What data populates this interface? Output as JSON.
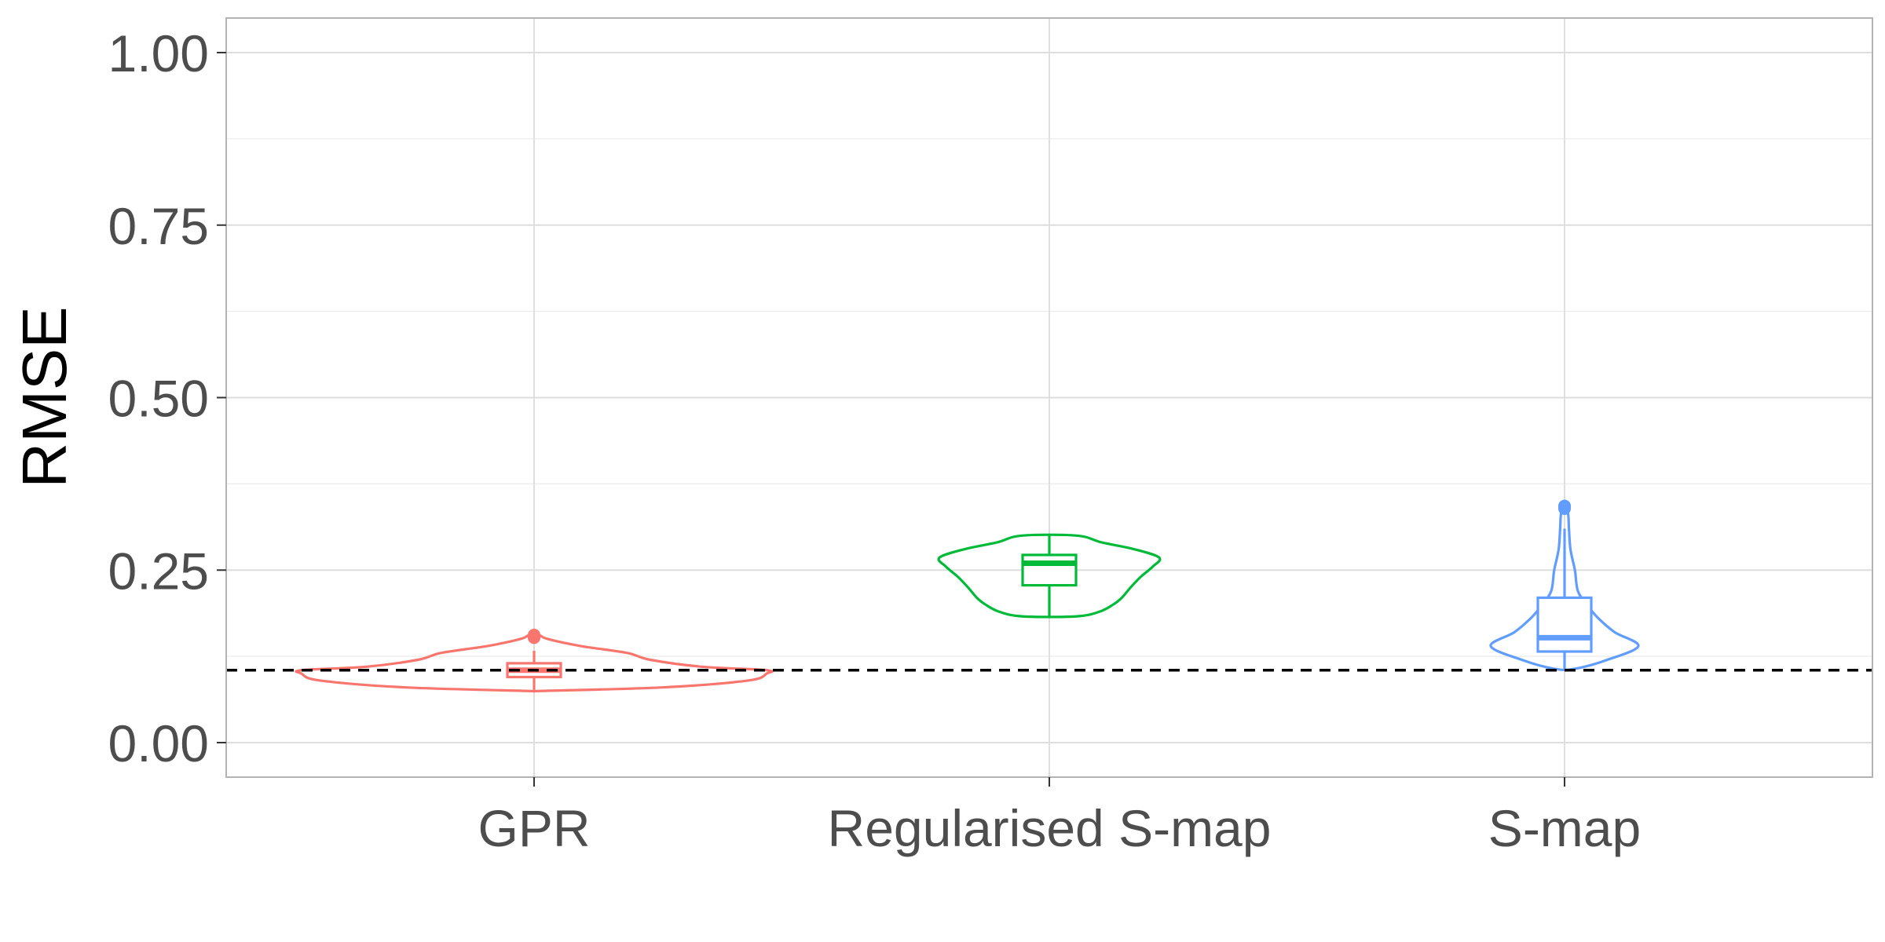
{
  "chart_data": {
    "type": "violin",
    "title": "",
    "xlabel": "",
    "ylabel": "RMSE",
    "ylim": [
      -0.05,
      1.05
    ],
    "yticks": [
      0.0,
      0.25,
      0.5,
      0.75,
      1.0
    ],
    "ytick_labels": [
      "0.00",
      "0.25",
      "0.50",
      "0.75",
      "1.00"
    ],
    "categories": [
      "GPR",
      "Regularised S-map",
      "S-map"
    ],
    "grid": true,
    "legend": "none",
    "reference_line": {
      "y": 0.105,
      "style": "dashed",
      "color": "#000000"
    },
    "series": [
      {
        "category": "GPR",
        "color": "#F8766D",
        "box": {
          "min": 0.075,
          "q1": 0.095,
          "median": 0.105,
          "q3": 0.115,
          "max": 0.133
        },
        "outliers": [
          0.152,
          0.154,
          0.156
        ],
        "violin_profile": [
          [
            0.075,
            0.04
          ],
          [
            0.08,
            0.55
          ],
          [
            0.09,
            0.92
          ],
          [
            0.1,
            1.0
          ],
          [
            0.105,
            1.0
          ],
          [
            0.11,
            0.72
          ],
          [
            0.12,
            0.5
          ],
          [
            0.13,
            0.4
          ],
          [
            0.14,
            0.2
          ],
          [
            0.15,
            0.06
          ],
          [
            0.156,
            0.02
          ]
        ]
      },
      {
        "category": "Regularised S-map",
        "color": "#00BA38",
        "box": {
          "min": 0.183,
          "q1": 0.228,
          "median": 0.26,
          "q3": 0.272,
          "max": 0.3
        },
        "outliers": [],
        "violin_profile": [
          [
            0.183,
            0.25
          ],
          [
            0.19,
            0.46
          ],
          [
            0.2,
            0.58
          ],
          [
            0.21,
            0.66
          ],
          [
            0.225,
            0.74
          ],
          [
            0.24,
            0.83
          ],
          [
            0.255,
            0.94
          ],
          [
            0.268,
            1.0
          ],
          [
            0.28,
            0.78
          ],
          [
            0.29,
            0.48
          ],
          [
            0.3,
            0.25
          ]
        ]
      },
      {
        "category": "S-map",
        "color": "#619CFF",
        "box": {
          "min": 0.107,
          "q1": 0.132,
          "median": 0.152,
          "q3": 0.21,
          "max": 0.31
        },
        "outliers": [
          0.339,
          0.341,
          0.343
        ],
        "violin_profile": [
          [
            0.107,
            0.14
          ],
          [
            0.12,
            0.58
          ],
          [
            0.14,
            1.0
          ],
          [
            0.16,
            0.68
          ],
          [
            0.18,
            0.46
          ],
          [
            0.2,
            0.3
          ],
          [
            0.22,
            0.18
          ],
          [
            0.25,
            0.14
          ],
          [
            0.28,
            0.08
          ],
          [
            0.31,
            0.06
          ],
          [
            0.33,
            0.05
          ],
          [
            0.343,
            0.02
          ]
        ]
      }
    ]
  }
}
